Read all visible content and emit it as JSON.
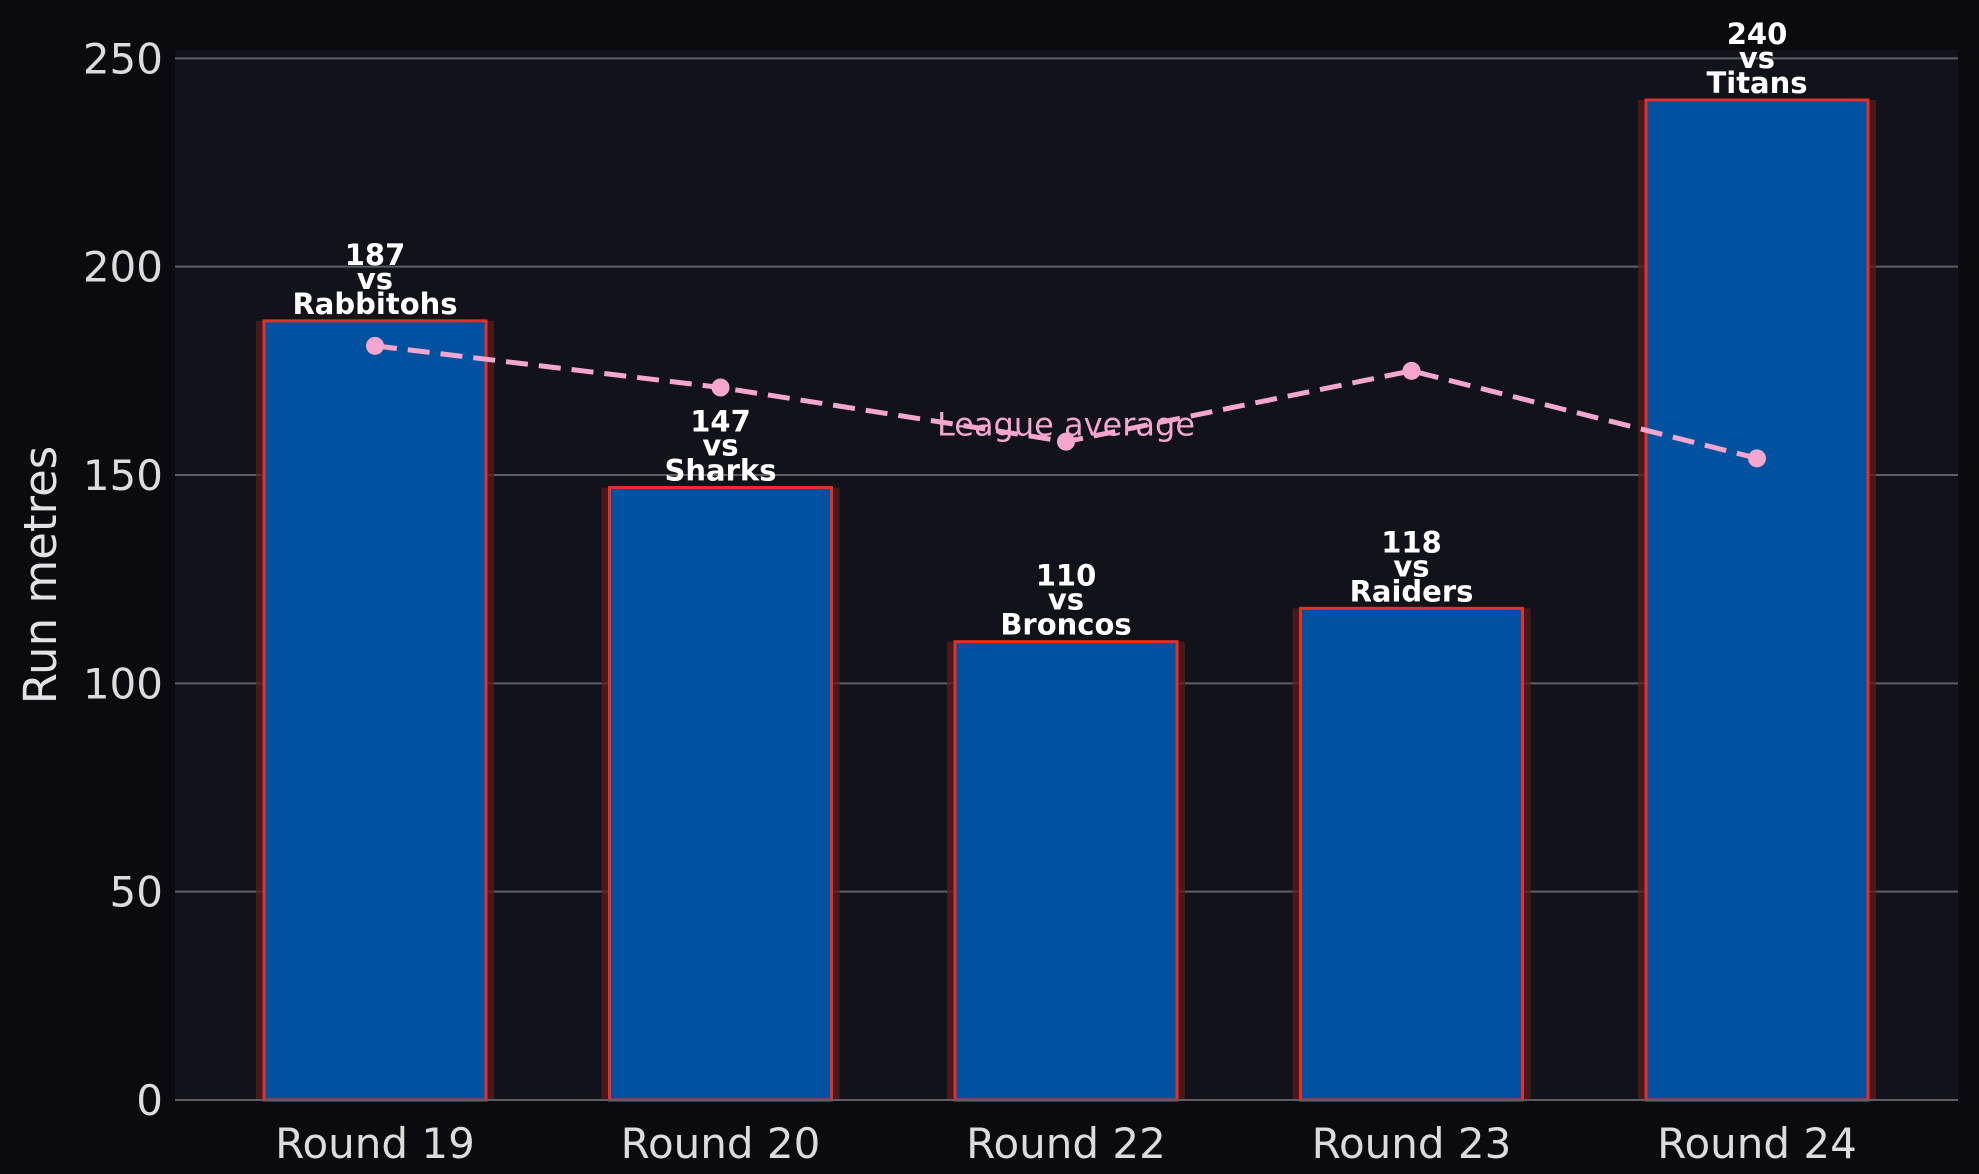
{
  "chart_data": {
    "type": "bar",
    "categories": [
      "Round 19",
      "Round 20",
      "Round 22",
      "Round 23",
      "Round 24"
    ],
    "series": [
      {
        "values": [
          187,
          147,
          110,
          118,
          240
        ],
        "opponents": [
          "Rabbitohs",
          "Sharks",
          "Broncos",
          "Raiders",
          "Titans"
        ]
      },
      {
        "name": "League average",
        "type": "line",
        "values": [
          181,
          171,
          158,
          175,
          154
        ]
      }
    ],
    "vs_text": "vs",
    "title": "",
    "xlabel": "",
    "ylabel": "Run metres",
    "ylim": [
      0,
      252
    ],
    "yticks": [
      0,
      50,
      100,
      150,
      200,
      250
    ],
    "grid": "horizontal",
    "colors": {
      "background": "#0b0b0f",
      "plot_background": "#12121a",
      "bar_fill": "#0052a0",
      "bar_edge": "#e2302a",
      "bar_glow": "#5a1c1c",
      "average_line": "#f4a6cf",
      "grid": "#5e5e66",
      "text": "#dcdcdc"
    }
  }
}
